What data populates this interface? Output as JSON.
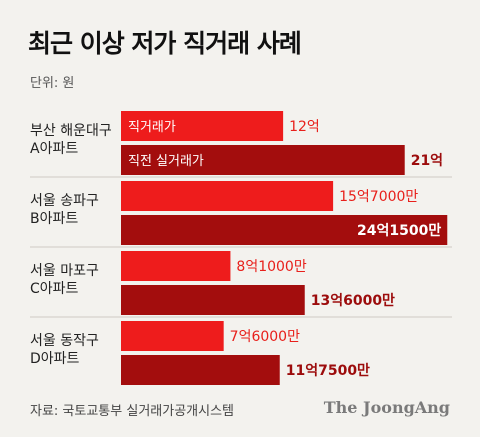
{
  "title": "최근 이상 저가 직거래 사례",
  "unit_label": "단위: 원",
  "source": "자료: 국토교통부 실거래가공개시스템",
  "brand": "The JoongAng",
  "colors": {
    "direct": "#ee1c1c",
    "recent": "#a30d0d",
    "direct_text": "#e8201b",
    "recent_text": "#9c0c0c",
    "divider": "#cfcac4"
  },
  "chart_data": {
    "type": "bar",
    "orientation": "horizontal",
    "unit": "원",
    "categories": [
      [
        "부산 해운대구",
        "A아파트"
      ],
      [
        "서울 송파구",
        "B아파트"
      ],
      [
        "서울 마포구",
        "C아파트"
      ],
      [
        "서울 동작구",
        "D아파트"
      ]
    ],
    "series": [
      {
        "key": "direct",
        "name": "직거래가",
        "values": [
          1200000000,
          1570000000,
          810000000,
          760000000
        ],
        "value_labels": [
          "12억",
          "15억7000만",
          "8억1000만",
          "7억6000만"
        ]
      },
      {
        "key": "recent",
        "name": "직전 실거래가",
        "values": [
          2100000000,
          2415000000,
          1360000000,
          1175000000
        ],
        "value_labels": [
          "21억",
          "24억1500만",
          "13억6000만",
          "11억7500만"
        ]
      }
    ],
    "xlim": [
      0,
      2450000000
    ],
    "grid": false,
    "legend": "inline labels inside first group bars"
  }
}
